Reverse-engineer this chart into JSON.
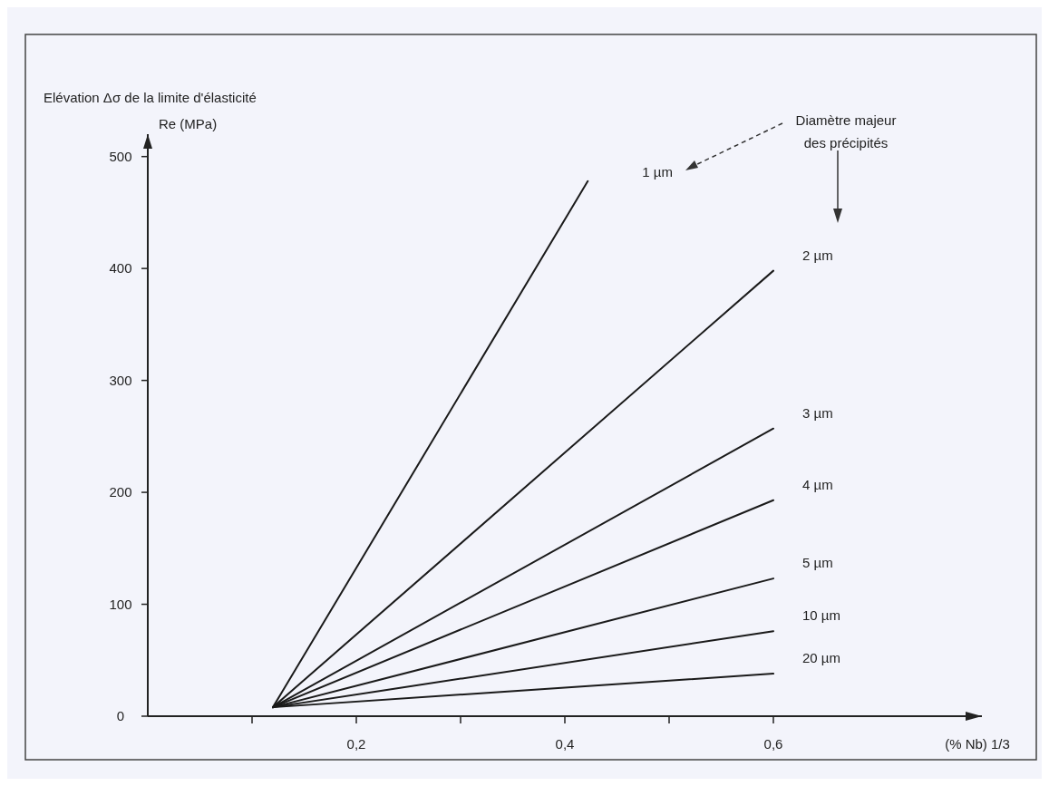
{
  "chart_data": {
    "type": "line",
    "ylabel": "Elévation Δσ de la limite d'élasticité\nRe (MPa)",
    "xlabel": "(% Nb) 1/3",
    "annotations": [
      "Diamètre majeur\ndes précipités"
    ],
    "xlim": [
      0,
      0.8
    ],
    "xticks": [
      {
        "value": 0.1,
        "label": null
      },
      {
        "value": 0.2,
        "label": "0,2"
      },
      {
        "value": 0.3,
        "label": null
      },
      {
        "value": 0.4,
        "label": "0,4"
      },
      {
        "value": 0.5,
        "label": null
      },
      {
        "value": 0.6,
        "label": "0,6"
      }
    ],
    "ylim": [
      0,
      520
    ],
    "yticks": [
      0,
      100,
      200,
      300,
      400,
      500
    ],
    "grid": false,
    "legend": false,
    "marker": "none",
    "line_style": "solid",
    "series": [
      {
        "name": "1 µm",
        "color": "#1a1a1a",
        "x": [
          0.12,
          0.422
        ],
        "values": [
          8,
          478
        ]
      },
      {
        "name": "2 µm",
        "color": "#1a1a1a",
        "x": [
          0.12,
          0.6
        ],
        "values": [
          8,
          398
        ]
      },
      {
        "name": "3 µm",
        "color": "#1a1a1a",
        "x": [
          0.12,
          0.6
        ],
        "values": [
          8,
          257
        ]
      },
      {
        "name": "4 µm",
        "color": "#1a1a1a",
        "x": [
          0.12,
          0.6
        ],
        "values": [
          8,
          193
        ]
      },
      {
        "name": "5 µm",
        "color": "#1a1a1a",
        "x": [
          0.12,
          0.6
        ],
        "values": [
          8,
          123
        ]
      },
      {
        "name": "10 µm",
        "color": "#1a1a1a",
        "x": [
          0.12,
          0.6
        ],
        "values": [
          8,
          76
        ]
      },
      {
        "name": "20 µm",
        "color": "#1a1a1a",
        "x": [
          0.12,
          0.6
        ],
        "values": [
          8,
          38
        ]
      }
    ]
  }
}
